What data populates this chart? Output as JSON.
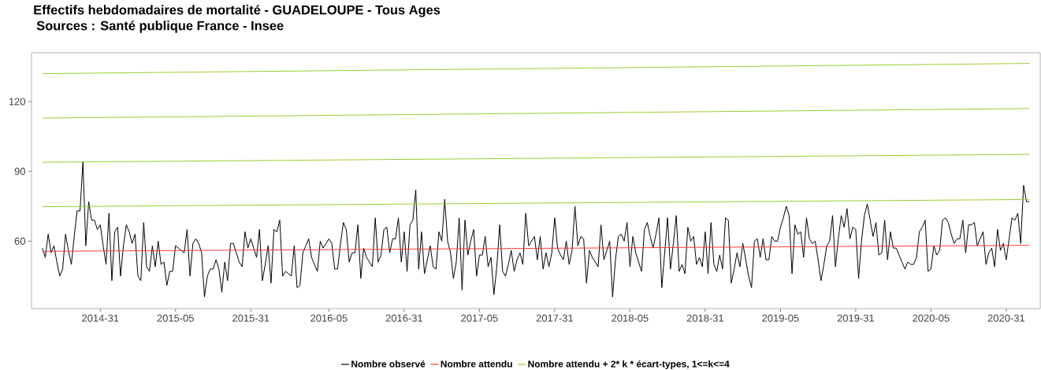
{
  "chart_data": {
    "type": "line",
    "title": "Effectifs hebdomadaires de mortalité  - GUADELOUPE - Tous Ages",
    "subtitle": "Sources : Santé publique France - Insee",
    "categories": [
      null,
      null,
      null,
      null,
      null,
      null,
      null,
      null,
      null,
      null,
      null,
      null,
      null,
      null,
      null,
      null,
      null,
      null,
      null,
      null,
      "2014-31",
      null,
      null,
      null,
      null,
      null,
      null,
      null,
      null,
      null,
      null,
      null,
      null,
      null,
      null,
      null,
      null,
      null,
      null,
      null,
      null,
      null,
      null,
      null,
      null,
      null,
      "2015-05",
      null,
      null,
      null,
      null,
      null,
      null,
      null,
      null,
      null,
      null,
      null,
      null,
      null,
      null,
      null,
      null,
      null,
      null,
      null,
      null,
      null,
      null,
      null,
      null,
      null,
      "2015-31",
      null,
      null,
      null,
      null,
      null,
      null,
      null,
      null,
      null,
      null,
      null,
      null,
      null,
      null,
      null,
      null,
      null,
      null,
      null,
      null,
      null,
      null,
      null,
      null,
      null,
      null,
      "2016-05",
      null,
      null,
      null,
      null,
      null,
      null,
      null,
      null,
      null,
      null,
      null,
      null,
      null,
      null,
      null,
      null,
      null,
      null,
      null,
      null,
      null,
      null,
      null,
      null,
      null,
      "2016-31",
      null,
      null,
      null,
      null,
      null,
      null,
      null,
      null,
      null,
      null,
      null,
      null,
      null,
      null,
      null,
      null,
      null,
      null,
      null,
      null,
      null,
      null,
      null,
      null,
      null,
      "2017-05",
      null,
      null,
      null,
      null,
      null,
      null,
      null,
      null,
      null,
      null,
      null,
      null,
      null,
      null,
      null,
      null,
      null,
      null,
      null,
      null,
      null,
      null,
      null,
      null,
      null,
      "2017-31",
      null,
      null,
      null,
      null,
      null,
      null,
      null,
      null,
      null,
      null,
      null,
      null,
      null,
      null,
      null,
      null,
      null,
      null,
      null,
      null,
      null,
      null,
      null,
      null,
      null,
      "2018-05",
      null,
      null,
      null,
      null,
      null,
      null,
      null,
      null,
      null,
      null,
      null,
      null,
      null,
      null,
      null,
      null,
      null,
      null,
      null,
      null,
      null,
      null,
      null,
      null,
      null,
      "2018-31",
      null,
      null,
      null,
      null,
      null,
      null,
      null,
      null,
      null,
      null,
      null,
      null,
      null,
      null,
      null,
      null,
      null,
      null,
      null,
      null,
      null,
      null,
      null,
      null,
      null,
      "2019-05",
      null,
      null,
      null,
      null,
      null,
      null,
      null,
      null,
      null,
      null,
      null,
      null,
      null,
      null,
      null,
      null,
      null,
      null,
      null,
      null,
      null,
      null,
      null,
      null,
      null,
      "2019-31",
      null,
      null,
      null,
      null,
      null,
      null,
      null,
      null,
      null,
      null,
      null,
      null,
      null,
      null,
      null,
      null,
      null,
      null,
      null,
      null,
      null,
      null,
      null,
      null,
      null,
      "2020-05",
      null,
      null,
      null,
      null,
      null,
      null,
      null,
      null,
      null,
      null,
      null,
      null,
      null,
      null,
      null,
      null,
      null,
      null,
      null,
      null,
      null,
      null,
      null,
      null,
      null,
      "2020-31",
      null,
      null,
      null,
      null,
      null,
      null,
      null,
      null
    ],
    "ylim": [
      31,
      141
    ],
    "yticks": [
      60,
      90,
      120
    ],
    "legend": "bottom",
    "series": [
      {
        "name": "Nombre observé",
        "color": "#000000",
        "values": [
          57,
          53,
          63,
          55,
          58,
          51,
          45,
          48,
          63,
          56,
          50,
          62,
          73,
          73,
          94,
          58,
          77,
          69,
          69,
          65,
          67,
          58,
          50,
          72,
          43,
          64,
          66,
          45,
          58,
          67,
          64,
          59,
          63,
          45,
          43,
          68,
          49,
          47,
          58,
          49,
          60,
          50,
          51,
          41,
          47,
          47,
          58,
          57,
          56,
          55,
          65,
          45,
          59,
          61,
          59,
          55,
          36,
          45,
          48,
          48,
          52,
          48,
          38,
          51,
          43,
          59,
          59,
          55,
          51,
          49,
          64,
          57,
          61,
          57,
          53,
          65,
          43,
          50,
          58,
          42,
          65,
          64,
          69,
          45,
          47,
          46,
          45,
          58,
          40,
          41,
          55,
          58,
          61,
          53,
          50,
          47,
          60,
          57,
          59,
          61,
          59,
          48,
          48,
          59,
          68,
          65,
          51,
          55,
          55,
          67,
          44,
          57,
          53,
          51,
          49,
          70,
          51,
          54,
          65,
          66,
          55,
          61,
          61,
          70,
          51,
          64,
          47,
          67,
          69,
          82,
          48,
          64,
          46,
          52,
          58,
          49,
          48,
          64,
          60,
          78,
          60,
          55,
          44,
          51,
          70,
          39,
          69,
          54,
          60,
          65,
          45,
          54,
          54,
          62,
          49,
          53,
          37,
          49,
          67,
          47,
          45,
          50,
          56,
          47,
          52,
          55,
          50,
          72,
          58,
          60,
          62,
          52,
          62,
          48,
          55,
          49,
          55,
          70,
          57,
          54,
          52,
          60,
          50,
          56,
          75,
          58,
          62,
          61,
          42,
          56,
          53,
          51,
          49,
          67,
          52,
          56,
          60,
          36,
          52,
          62,
          63,
          60,
          68,
          49,
          62,
          55,
          51,
          47,
          65,
          68,
          62,
          57,
          63,
          70,
          40,
          55,
          70,
          48,
          59,
          71,
          47,
          50,
          46,
          66,
          60,
          62,
          50,
          53,
          49,
          64,
          46,
          68,
          50,
          47,
          54,
          48,
          70,
          69,
          42,
          48,
          55,
          49,
          59,
          52,
          45,
          40,
          60,
          61,
          53,
          61,
          52,
          52,
          62,
          60,
          60,
          66,
          70,
          75,
          71,
          46,
          67,
          63,
          64,
          53,
          70,
          61,
          59,
          60,
          52,
          43,
          50,
          58,
          60,
          71,
          49,
          61,
          71,
          66,
          74,
          61,
          66,
          65,
          44,
          60,
          71,
          76,
          69,
          62,
          68,
          54,
          55,
          69,
          52,
          64,
          57,
          57,
          54,
          51,
          48,
          51,
          50,
          50,
          53,
          64,
          66,
          69,
          47,
          48,
          58,
          54,
          56,
          69,
          70,
          68,
          63,
          59,
          61,
          61,
          69,
          55,
          67,
          67,
          68,
          58,
          61,
          64,
          50,
          55,
          57,
          49,
          65,
          56,
          59,
          52,
          61,
          70,
          69,
          72,
          59,
          84,
          77,
          77
        ]
      },
      {
        "name": "Nombre attendu",
        "color": "#ff3b3b",
        "values": [
          55.6,
          null,
          null,
          null,
          null,
          null,
          null,
          null,
          null,
          null,
          null,
          null,
          null,
          null,
          null,
          null,
          null,
          null,
          null,
          null,
          null,
          null,
          null,
          null,
          null,
          null,
          null,
          null,
          null,
          null,
          null,
          null,
          null,
          null,
          null,
          null,
          null,
          null,
          null,
          null,
          null,
          null,
          null,
          null,
          null,
          null,
          null,
          null,
          null,
          null,
          null,
          null,
          null,
          null,
          null,
          null,
          null,
          null,
          null,
          null,
          null,
          null,
          null,
          null,
          null,
          null,
          null,
          null,
          null,
          null,
          null,
          null,
          null,
          null,
          null,
          null,
          null,
          null,
          null,
          null,
          null,
          null,
          null,
          null,
          null,
          null,
          null,
          null,
          null,
          null,
          null,
          null,
          null,
          null,
          null,
          null,
          null,
          null,
          null,
          null,
          null,
          null,
          null,
          null,
          null,
          null,
          null,
          null,
          null,
          null,
          null,
          null,
          null,
          null,
          null,
          null,
          null,
          null,
          null,
          null,
          null,
          null,
          null,
          null,
          null,
          null,
          null,
          null,
          null,
          null,
          null,
          null,
          null,
          null,
          null,
          null,
          null,
          null,
          null,
          null,
          null,
          null,
          null,
          null,
          null,
          null,
          null,
          null,
          null,
          null,
          null,
          null,
          null,
          null,
          null,
          null,
          null,
          null,
          null,
          null,
          null,
          null,
          null,
          null,
          null,
          null,
          null,
          null,
          null,
          null,
          null,
          null,
          null,
          null,
          null,
          null,
          null,
          null,
          null,
          null,
          null,
          null,
          null,
          null,
          null,
          null,
          null,
          null,
          null,
          null,
          null,
          null,
          null,
          null,
          null,
          null,
          null,
          null,
          null,
          null,
          null,
          null,
          null,
          null,
          null,
          null,
          null,
          null,
          null,
          null,
          null,
          null,
          null,
          null,
          null,
          null,
          null,
          null,
          null,
          null,
          null,
          null,
          null,
          null,
          null,
          null,
          null,
          null,
          null,
          null,
          null,
          null,
          null,
          null,
          null,
          null,
          null,
          null,
          null,
          null,
          null,
          null,
          null,
          null,
          null,
          null,
          null,
          null,
          null,
          null,
          null,
          null,
          null,
          null,
          null,
          null,
          null,
          null,
          null,
          null,
          null,
          null,
          null,
          null,
          null,
          null,
          null,
          null,
          null,
          null,
          null,
          null,
          null,
          null,
          null,
          null,
          null,
          null,
          null,
          null,
          null,
          null,
          null,
          null,
          null,
          null,
          null,
          null,
          null,
          null,
          null,
          null,
          null,
          null,
          null,
          null,
          null,
          null,
          null,
          null,
          null,
          null,
          null,
          null,
          null,
          null,
          null,
          null,
          null,
          null,
          null,
          null,
          null,
          null,
          null,
          null,
          null,
          null,
          null,
          null,
          null,
          null,
          null,
          null,
          null,
          null,
          null,
          null,
          null,
          null,
          null,
          null,
          null,
          null,
          null,
          null,
          null,
          null,
          null,
          null,
          null,
          58.2
        ]
      },
      {
        "name": "Nombre attendu + 2* k * écart-types, 1<=k<=4",
        "color": "#9acd32",
        "values": [
          74.8,
          null,
          null,
          null,
          null,
          null,
          null,
          null,
          null,
          null,
          null,
          null,
          null,
          null,
          null,
          null,
          null,
          null,
          null,
          null,
          null,
          null,
          null,
          null,
          null,
          null,
          null,
          null,
          null,
          null,
          null,
          null,
          null,
          null,
          null,
          null,
          null,
          null,
          null,
          null,
          null,
          null,
          null,
          null,
          null,
          null,
          null,
          null,
          null,
          null,
          null,
          null,
          null,
          null,
          null,
          null,
          null,
          null,
          null,
          null,
          null,
          null,
          null,
          null,
          null,
          null,
          null,
          null,
          null,
          null,
          null,
          null,
          null,
          null,
          null,
          null,
          null,
          null,
          null,
          null,
          null,
          null,
          null,
          null,
          null,
          null,
          null,
          null,
          null,
          null,
          null,
          null,
          null,
          null,
          null,
          null,
          null,
          null,
          null,
          null,
          null,
          null,
          null,
          null,
          null,
          null,
          null,
          null,
          null,
          null,
          null,
          null,
          null,
          null,
          null,
          null,
          null,
          null,
          null,
          null,
          null,
          null,
          null,
          null,
          null,
          null,
          null,
          null,
          null,
          null,
          null,
          null,
          null,
          null,
          null,
          null,
          null,
          null,
          null,
          null,
          null,
          null,
          null,
          null,
          null,
          null,
          null,
          null,
          null,
          null,
          null,
          null,
          null,
          null,
          null,
          null,
          null,
          null,
          null,
          null,
          null,
          null,
          null,
          null,
          null,
          null,
          null,
          null,
          null,
          null,
          null,
          null,
          null,
          null,
          null,
          null,
          null,
          null,
          null,
          null,
          null,
          null,
          null,
          null,
          null,
          null,
          null,
          null,
          null,
          null,
          null,
          null,
          null,
          null,
          null,
          null,
          null,
          null,
          null,
          null,
          null,
          null,
          null,
          null,
          null,
          null,
          null,
          null,
          null,
          null,
          null,
          null,
          null,
          null,
          null,
          null,
          null,
          null,
          null,
          null,
          null,
          null,
          null,
          null,
          null,
          null,
          null,
          null,
          null,
          null,
          null,
          null,
          null,
          null,
          null,
          null,
          null,
          null,
          null,
          null,
          null,
          null,
          null,
          null,
          null,
          null,
          null,
          null,
          null,
          null,
          null,
          null,
          null,
          null,
          null,
          null,
          null,
          null,
          null,
          null,
          null,
          null,
          null,
          null,
          null,
          null,
          null,
          null,
          null,
          null,
          null,
          null,
          null,
          null,
          null,
          null,
          null,
          null,
          null,
          null,
          null,
          null,
          null,
          null,
          null,
          null,
          null,
          null,
          null,
          null,
          null,
          null,
          null,
          null,
          null,
          null,
          null,
          null,
          null,
          null,
          null,
          null,
          null,
          null,
          null,
          null,
          null,
          null,
          null,
          null,
          null,
          null,
          null,
          null,
          null,
          null,
          null,
          null,
          null,
          null,
          null,
          null,
          null,
          null,
          null,
          null,
          null,
          null,
          null,
          null,
          null,
          null,
          null,
          null,
          null,
          null,
          null,
          null,
          null,
          null,
          null,
          77.9
        ]
      },
      {
        "color": "#9acd32",
        "values": [
          93.9,
          null,
          null,
          null,
          null,
          null,
          null,
          null,
          null,
          null,
          null,
          null,
          null,
          null,
          null,
          null,
          null,
          null,
          null,
          null,
          null,
          null,
          null,
          null,
          null,
          null,
          null,
          null,
          null,
          null,
          null,
          null,
          null,
          null,
          null,
          null,
          null,
          null,
          null,
          null,
          null,
          null,
          null,
          null,
          null,
          null,
          null,
          null,
          null,
          null,
          null,
          null,
          null,
          null,
          null,
          null,
          null,
          null,
          null,
          null,
          null,
          null,
          null,
          null,
          null,
          null,
          null,
          null,
          null,
          null,
          null,
          null,
          null,
          null,
          null,
          null,
          null,
          null,
          null,
          null,
          null,
          null,
          null,
          null,
          null,
          null,
          null,
          null,
          null,
          null,
          null,
          null,
          null,
          null,
          null,
          null,
          null,
          null,
          null,
          null,
          null,
          null,
          null,
          null,
          null,
          null,
          null,
          null,
          null,
          null,
          null,
          null,
          null,
          null,
          null,
          null,
          null,
          null,
          null,
          null,
          null,
          null,
          null,
          null,
          null,
          null,
          null,
          null,
          null,
          null,
          null,
          null,
          null,
          null,
          null,
          null,
          null,
          null,
          null,
          null,
          null,
          null,
          null,
          null,
          null,
          null,
          null,
          null,
          null,
          null,
          null,
          null,
          null,
          null,
          null,
          null,
          null,
          null,
          null,
          null,
          null,
          null,
          null,
          null,
          null,
          null,
          null,
          null,
          null,
          null,
          null,
          null,
          null,
          null,
          null,
          null,
          null,
          null,
          null,
          null,
          null,
          null,
          null,
          null,
          null,
          null,
          null,
          null,
          null,
          null,
          null,
          null,
          null,
          null,
          null,
          null,
          null,
          null,
          null,
          null,
          null,
          null,
          null,
          null,
          null,
          null,
          null,
          null,
          null,
          null,
          null,
          null,
          null,
          null,
          null,
          null,
          null,
          null,
          null,
          null,
          null,
          null,
          null,
          null,
          null,
          null,
          null,
          null,
          null,
          null,
          null,
          null,
          null,
          null,
          null,
          null,
          null,
          null,
          null,
          null,
          null,
          null,
          null,
          null,
          null,
          null,
          null,
          null,
          null,
          null,
          null,
          null,
          null,
          null,
          null,
          null,
          null,
          null,
          null,
          null,
          null,
          null,
          null,
          null,
          null,
          null,
          null,
          null,
          null,
          null,
          null,
          null,
          null,
          null,
          null,
          null,
          null,
          null,
          null,
          null,
          null,
          null,
          null,
          null,
          null,
          null,
          null,
          null,
          null,
          null,
          null,
          null,
          null,
          null,
          null,
          null,
          null,
          null,
          null,
          null,
          null,
          null,
          null,
          null,
          null,
          null,
          null,
          null,
          null,
          null,
          null,
          null,
          null,
          null,
          null,
          null,
          null,
          null,
          null,
          null,
          null,
          null,
          null,
          null,
          null,
          null,
          null,
          null,
          null,
          null,
          null,
          null,
          null,
          null,
          null,
          null,
          null,
          null,
          null,
          null,
          null,
          97.3
        ]
      },
      {
        "color": "#9acd32",
        "values": [
          112.9,
          null,
          null,
          null,
          null,
          null,
          null,
          null,
          null,
          null,
          null,
          null,
          null,
          null,
          null,
          null,
          null,
          null,
          null,
          null,
          null,
          null,
          null,
          null,
          null,
          null,
          null,
          null,
          null,
          null,
          null,
          null,
          null,
          null,
          null,
          null,
          null,
          null,
          null,
          null,
          null,
          null,
          null,
          null,
          null,
          null,
          null,
          null,
          null,
          null,
          null,
          null,
          null,
          null,
          null,
          null,
          null,
          null,
          null,
          null,
          null,
          null,
          null,
          null,
          null,
          null,
          null,
          null,
          null,
          null,
          null,
          null,
          null,
          null,
          null,
          null,
          null,
          null,
          null,
          null,
          null,
          null,
          null,
          null,
          null,
          null,
          null,
          null,
          null,
          null,
          null,
          null,
          null,
          null,
          null,
          null,
          null,
          null,
          null,
          null,
          null,
          null,
          null,
          null,
          null,
          null,
          null,
          null,
          null,
          null,
          null,
          null,
          null,
          null,
          null,
          null,
          null,
          null,
          null,
          null,
          null,
          null,
          null,
          null,
          null,
          null,
          null,
          null,
          null,
          null,
          null,
          null,
          null,
          null,
          null,
          null,
          null,
          null,
          null,
          null,
          null,
          null,
          null,
          null,
          null,
          null,
          null,
          null,
          null,
          null,
          null,
          null,
          null,
          null,
          null,
          null,
          null,
          null,
          null,
          null,
          null,
          null,
          null,
          null,
          null,
          null,
          null,
          null,
          null,
          null,
          null,
          null,
          null,
          null,
          null,
          null,
          null,
          null,
          null,
          null,
          null,
          null,
          null,
          null,
          null,
          null,
          null,
          null,
          null,
          null,
          null,
          null,
          null,
          null,
          null,
          null,
          null,
          null,
          null,
          null,
          null,
          null,
          null,
          null,
          null,
          null,
          null,
          null,
          null,
          null,
          null,
          null,
          null,
          null,
          null,
          null,
          null,
          null,
          null,
          null,
          null,
          null,
          null,
          null,
          null,
          null,
          null,
          null,
          null,
          null,
          null,
          null,
          null,
          null,
          null,
          null,
          null,
          null,
          null,
          null,
          null,
          null,
          null,
          null,
          null,
          null,
          null,
          null,
          null,
          null,
          null,
          null,
          null,
          null,
          null,
          null,
          null,
          null,
          null,
          null,
          null,
          null,
          null,
          null,
          null,
          null,
          null,
          null,
          null,
          null,
          null,
          null,
          null,
          null,
          null,
          null,
          null,
          null,
          null,
          null,
          null,
          null,
          null,
          null,
          null,
          null,
          null,
          null,
          null,
          null,
          null,
          null,
          null,
          null,
          null,
          null,
          null,
          null,
          null,
          null,
          null,
          null,
          null,
          null,
          null,
          null,
          null,
          null,
          null,
          null,
          null,
          null,
          null,
          null,
          null,
          null,
          null,
          null,
          null,
          null,
          null,
          null,
          null,
          null,
          null,
          null,
          null,
          null,
          null,
          null,
          null,
          null,
          null,
          null,
          null,
          null,
          null,
          null,
          null,
          null,
          null,
          117.0
        ]
      },
      {
        "color": "#9acd32",
        "values": [
          132.0,
          null,
          null,
          null,
          null,
          null,
          null,
          null,
          null,
          null,
          null,
          null,
          null,
          null,
          null,
          null,
          null,
          null,
          null,
          null,
          null,
          null,
          null,
          null,
          null,
          null,
          null,
          null,
          null,
          null,
          null,
          null,
          null,
          null,
          null,
          null,
          null,
          null,
          null,
          null,
          null,
          null,
          null,
          null,
          null,
          null,
          null,
          null,
          null,
          null,
          null,
          null,
          null,
          null,
          null,
          null,
          null,
          null,
          null,
          null,
          null,
          null,
          null,
          null,
          null,
          null,
          null,
          null,
          null,
          null,
          null,
          null,
          null,
          null,
          null,
          null,
          null,
          null,
          null,
          null,
          null,
          null,
          null,
          null,
          null,
          null,
          null,
          null,
          null,
          null,
          null,
          null,
          null,
          null,
          null,
          null,
          null,
          null,
          null,
          null,
          null,
          null,
          null,
          null,
          null,
          null,
          null,
          null,
          null,
          null,
          null,
          null,
          null,
          null,
          null,
          null,
          null,
          null,
          null,
          null,
          null,
          null,
          null,
          null,
          null,
          null,
          null,
          null,
          null,
          null,
          null,
          null,
          null,
          null,
          null,
          null,
          null,
          null,
          null,
          null,
          null,
          null,
          null,
          null,
          null,
          null,
          null,
          null,
          null,
          null,
          null,
          null,
          null,
          null,
          null,
          null,
          null,
          null,
          null,
          null,
          null,
          null,
          null,
          null,
          null,
          null,
          null,
          null,
          null,
          null,
          null,
          null,
          null,
          null,
          null,
          null,
          null,
          null,
          null,
          null,
          null,
          null,
          null,
          null,
          null,
          null,
          null,
          null,
          null,
          null,
          null,
          null,
          null,
          null,
          null,
          null,
          null,
          null,
          null,
          null,
          null,
          null,
          null,
          null,
          null,
          null,
          null,
          null,
          null,
          null,
          null,
          null,
          null,
          null,
          null,
          null,
          null,
          null,
          null,
          null,
          null,
          null,
          null,
          null,
          null,
          null,
          null,
          null,
          null,
          null,
          null,
          null,
          null,
          null,
          null,
          null,
          null,
          null,
          null,
          null,
          null,
          null,
          null,
          null,
          null,
          null,
          null,
          null,
          null,
          null,
          null,
          null,
          null,
          null,
          null,
          null,
          null,
          null,
          null,
          null,
          null,
          null,
          null,
          null,
          null,
          null,
          null,
          null,
          null,
          null,
          null,
          null,
          null,
          null,
          null,
          null,
          null,
          null,
          null,
          null,
          null,
          null,
          null,
          null,
          null,
          null,
          null,
          null,
          null,
          null,
          null,
          null,
          null,
          null,
          null,
          null,
          null,
          null,
          null,
          null,
          null,
          null,
          null,
          null,
          null,
          null,
          null,
          null,
          null,
          null,
          null,
          null,
          null,
          null,
          null,
          null,
          null,
          null,
          null,
          null,
          null,
          null,
          null,
          null,
          null,
          null,
          null,
          null,
          null,
          null,
          null,
          null,
          null,
          null,
          null,
          null,
          null,
          null,
          null,
          null,
          null,
          136.4
        ]
      }
    ]
  }
}
